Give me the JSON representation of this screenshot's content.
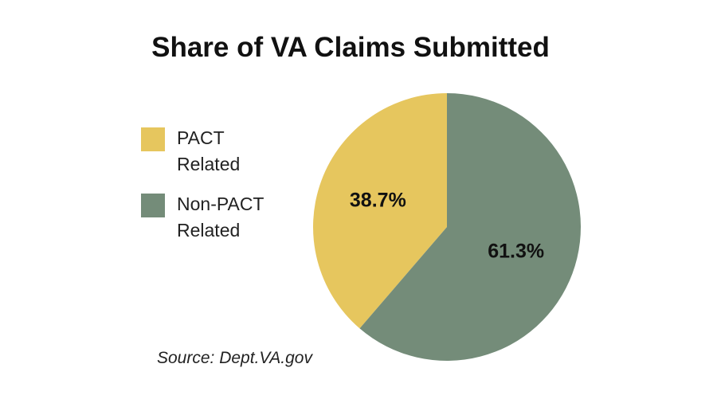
{
  "chart_data": {
    "type": "pie",
    "title": "Share of VA Claims Submitted",
    "categories": [
      "PACT Related",
      "Non-PACT Related"
    ],
    "values": [
      38.7,
      61.3
    ],
    "value_labels": [
      "38.7%",
      "61.3%"
    ],
    "colors": [
      "#e6c65e",
      "#748c79"
    ],
    "legend": "left",
    "source": "Source: Dept.VA.gov"
  }
}
